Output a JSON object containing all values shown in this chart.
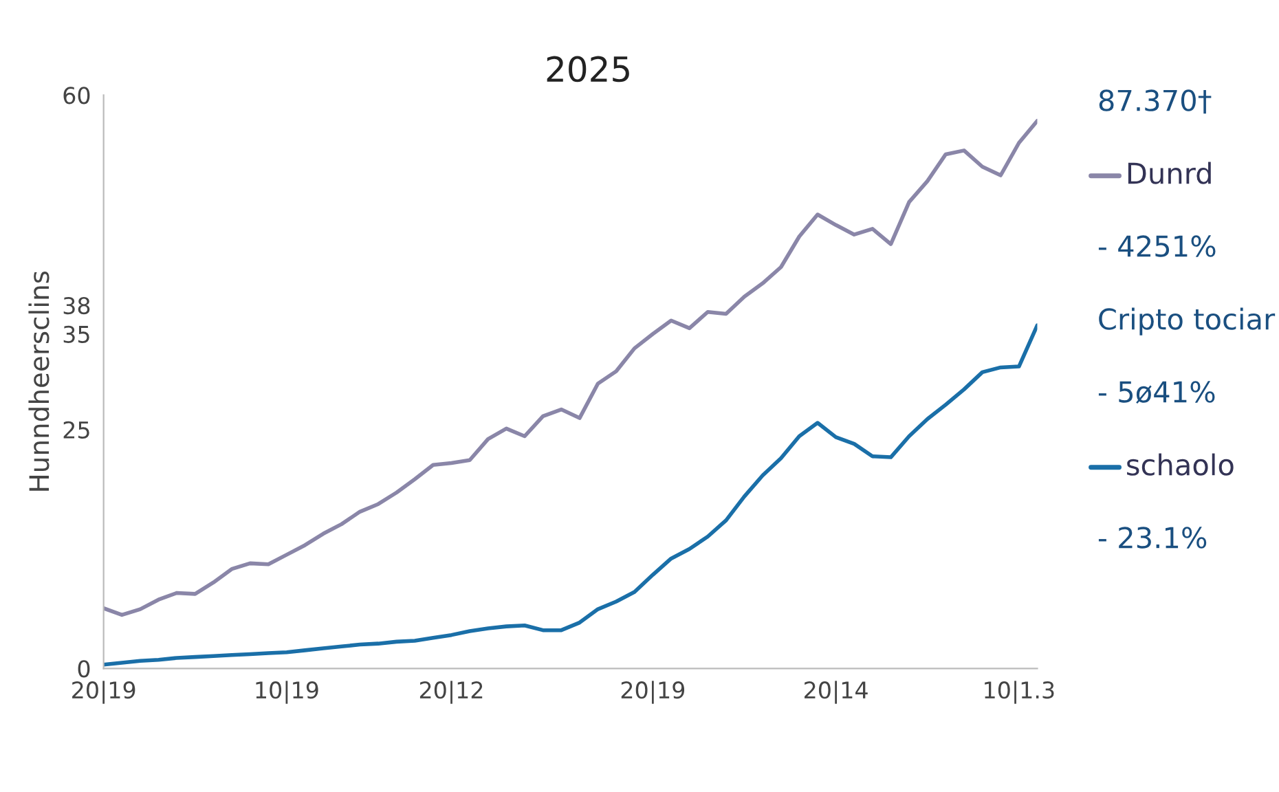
{
  "chart_data": {
    "type": "line",
    "title": "2025",
    "ylabel": "Hunndheersclins",
    "categories": [
      "20|19",
      null,
      null,
      null,
      null,
      null,
      null,
      null,
      null,
      null,
      "10|19",
      null,
      null,
      null,
      null,
      null,
      null,
      null,
      null,
      "20|12",
      null,
      null,
      null,
      null,
      null,
      null,
      null,
      null,
      null,
      null,
      "20|19",
      null,
      null,
      null,
      null,
      null,
      null,
      null,
      null,
      null,
      "20|14",
      null,
      null,
      null,
      null,
      null,
      null,
      null,
      null,
      null,
      "10|1.3",
      null
    ],
    "ylim": [
      0,
      60
    ],
    "yticks": [
      0,
      25,
      35,
      38,
      60
    ],
    "grid": false,
    "legend": "right",
    "marker": "none",
    "line_style": "solid",
    "annotations": [
      "87.370†",
      "- 4251%",
      "Cripto tociar",
      "- 5ø41%",
      "- 23.1%"
    ],
    "series": [
      {
        "name": "Dunrd",
        "color": "#8a86a8",
        "values": [
          6.3,
          5.6,
          6.2,
          7.2,
          7.9,
          7.8,
          9.0,
          10.4,
          11.0,
          10.9,
          11.9,
          12.9,
          14.1,
          15.1,
          16.4,
          17.2,
          18.4,
          19.8,
          21.3,
          21.5,
          21.8,
          24.0,
          25.1,
          24.3,
          26.4,
          27.1,
          26.2,
          29.8,
          31.1,
          33.5,
          35.0,
          36.4,
          35.6,
          37.3,
          37.1,
          38.9,
          40.3,
          42.0,
          45.2,
          47.5,
          46.4,
          45.4,
          46.0,
          44.4,
          48.8,
          51.0,
          53.8,
          54.2,
          52.5,
          51.6,
          55.0,
          57.3
        ]
      },
      {
        "name": "schaolo",
        "color": "#1a6fa8",
        "values": [
          0.4,
          0.6,
          0.8,
          0.9,
          1.1,
          1.2,
          1.3,
          1.4,
          1.5,
          1.6,
          1.7,
          1.9,
          2.1,
          2.3,
          2.5,
          2.6,
          2.8,
          2.9,
          3.2,
          3.5,
          3.9,
          4.2,
          4.4,
          4.5,
          4.0,
          4.0,
          4.8,
          6.2,
          7.0,
          8.0,
          9.8,
          11.5,
          12.5,
          13.8,
          15.5,
          18.0,
          20.2,
          22.0,
          24.3,
          25.7,
          24.2,
          23.5,
          22.2,
          22.1,
          24.3,
          26.1,
          27.6,
          29.2,
          31.0,
          31.5,
          31.6,
          35.9
        ]
      }
    ]
  }
}
